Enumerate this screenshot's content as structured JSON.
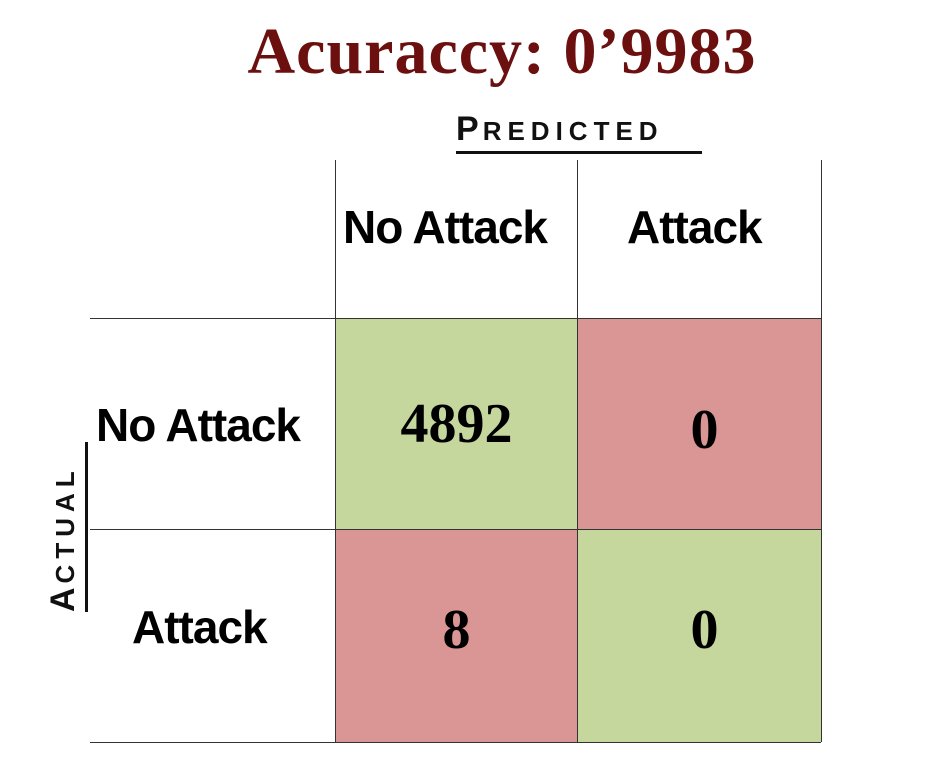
{
  "chart_data": {
    "type": "table",
    "title": "Acuraccy: 0’9983",
    "column_axis_label": "PREDICTED",
    "row_axis_label": "ACTUAL",
    "columns": [
      "No Attack",
      "Attack"
    ],
    "rows": [
      "No Attack",
      "Attack"
    ],
    "values": [
      [
        4892,
        0
      ],
      [
        8,
        0
      ]
    ],
    "colors": {
      "correct": "#c5d79d",
      "incorrect": "#da9694",
      "title": "#6b0f0f"
    }
  },
  "labels": {
    "predicted_first": "P",
    "predicted_rest": "REDICTED",
    "actual_first": "A",
    "actual_rest": "CTUAL"
  },
  "display": {
    "cell_00": "4892",
    "cell_01": "0",
    "cell_10": "8",
    "cell_11": "0"
  }
}
